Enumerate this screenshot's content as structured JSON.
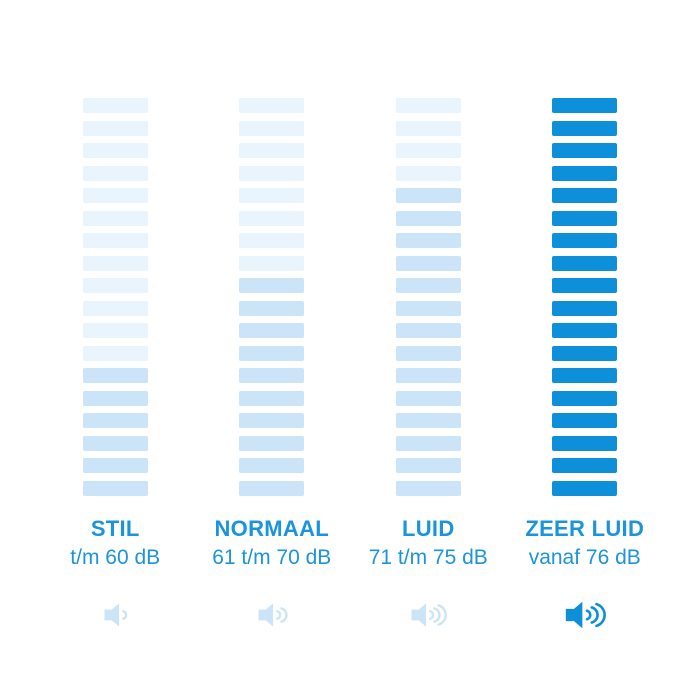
{
  "chart_data": {
    "type": "bar",
    "variant": "segmented-loudness-scale",
    "orientation": "vertical",
    "segments_per_column": 18,
    "categories": [
      "STIL",
      "NORMAAL",
      "LUID",
      "ZEER LUID"
    ],
    "series": [
      {
        "name": "filled segments",
        "values": [
          6,
          10,
          14,
          18
        ]
      },
      {
        "name": "empty segments",
        "values": [
          12,
          8,
          4,
          0
        ]
      }
    ],
    "range_labels": [
      "t/m 60 dB",
      "61 t/m 70 dB",
      "71 t/m 75 dB",
      "vanaf 76 dB"
    ],
    "sound_wave_counts": [
      1,
      2,
      3,
      3
    ],
    "ylim": [
      0,
      18
    ],
    "grid": false,
    "legend": false
  },
  "colors": {
    "background": "#FFFFFF",
    "empty_segment": "#E9F4FC",
    "light_fill": "#CCE4F7",
    "bright_blue": "#0D90D9",
    "text_blue": "#1C94DC"
  },
  "columns": [
    {
      "label": "STIL",
      "range": "t/m 60 dB",
      "segments_total": 18,
      "segments_filled": 6,
      "fill_color": "#CCE4F7",
      "empty_color": "#E9F4FC",
      "icon": "speaker-1-wave-icon",
      "waves": 1,
      "icon_color": "#CCE4F7"
    },
    {
      "label": "NORMAAL",
      "range": "61 t/m 70 dB",
      "segments_total": 18,
      "segments_filled": 10,
      "fill_color": "#CCE4F7",
      "empty_color": "#E9F4FC",
      "icon": "speaker-2-waves-icon",
      "waves": 2,
      "icon_color": "#CCE4F7"
    },
    {
      "label": "LUID",
      "range": "71 t/m 75 dB",
      "segments_total": 18,
      "segments_filled": 14,
      "fill_color": "#CCE4F7",
      "empty_color": "#E9F4FC",
      "icon": "speaker-3-waves-icon",
      "waves": 3,
      "icon_color": "#CCE4F7"
    },
    {
      "label": "ZEER LUID",
      "range": "vanaf 76 dB",
      "segments_total": 18,
      "segments_filled": 18,
      "fill_color": "#0D90D9",
      "empty_color": "#E9F4FC",
      "icon": "speaker-3-waves-icon",
      "waves": 3,
      "icon_color": "#0D90D9"
    }
  ]
}
